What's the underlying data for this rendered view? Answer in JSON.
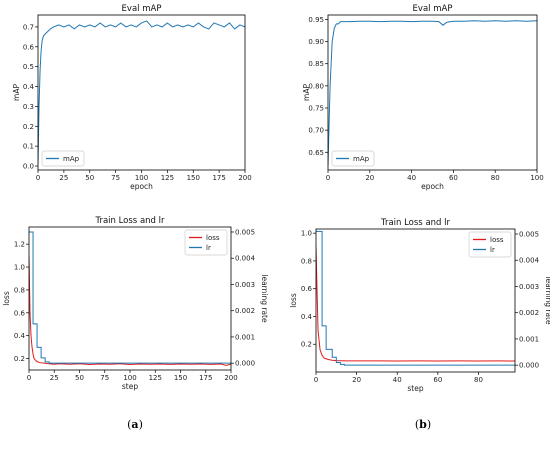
{
  "chart_data": [
    {
      "type": "line",
      "title": "Eval mAP",
      "xlabel": "epoch",
      "ylabel": "mAP",
      "xlim": [
        0,
        200
      ],
      "ylim": [
        -0.02,
        0.76
      ],
      "xticks": [
        0,
        25,
        50,
        75,
        100,
        125,
        150,
        175,
        200
      ],
      "yticks": [
        0.0,
        0.1,
        0.2,
        0.3,
        0.4,
        0.5,
        0.6,
        0.7
      ],
      "yticklabels": [
        "0.0",
        "0.1",
        "0.2",
        "0.3",
        "0.4",
        "0.5",
        "0.6",
        "0.7"
      ],
      "legend": "lower-left",
      "series": [
        {
          "name": "mAp",
          "color": "#1f77b4",
          "x": [
            0,
            1,
            2,
            3,
            4,
            5,
            6,
            8,
            10,
            12,
            15,
            20,
            25,
            30,
            35,
            40,
            45,
            50,
            55,
            60,
            65,
            70,
            75,
            80,
            85,
            90,
            95,
            100,
            105,
            110,
            115,
            120,
            125,
            130,
            135,
            140,
            145,
            150,
            155,
            160,
            165,
            170,
            175,
            180,
            185,
            190,
            195,
            200
          ],
          "y": [
            0.01,
            0.3,
            0.48,
            0.58,
            0.63,
            0.65,
            0.66,
            0.67,
            0.68,
            0.69,
            0.7,
            0.71,
            0.7,
            0.71,
            0.69,
            0.71,
            0.7,
            0.71,
            0.7,
            0.72,
            0.7,
            0.71,
            0.7,
            0.72,
            0.7,
            0.71,
            0.7,
            0.72,
            0.73,
            0.7,
            0.71,
            0.7,
            0.72,
            0.7,
            0.71,
            0.7,
            0.71,
            0.7,
            0.72,
            0.7,
            0.69,
            0.72,
            0.71,
            0.7,
            0.72,
            0.69,
            0.71,
            0.7
          ]
        }
      ]
    },
    {
      "type": "line",
      "title": "Eval mAP",
      "xlabel": "epoch",
      "ylabel": "mAP",
      "xlim": [
        0,
        100
      ],
      "ylim": [
        0.61,
        0.96
      ],
      "xticks": [
        0,
        20,
        40,
        60,
        80,
        100
      ],
      "yticks": [
        0.65,
        0.7,
        0.75,
        0.8,
        0.85,
        0.9,
        0.95
      ],
      "yticklabels": [
        "0.65",
        "0.70",
        "0.75",
        "0.80",
        "0.85",
        "0.90",
        "0.95"
      ],
      "legend": "lower-left",
      "series": [
        {
          "name": "mAp",
          "color": "#1f77b4",
          "x": [
            0,
            1,
            2,
            3,
            4,
            5,
            6,
            8,
            10,
            15,
            20,
            25,
            30,
            35,
            40,
            45,
            50,
            53,
            55,
            57,
            60,
            65,
            70,
            75,
            80,
            85,
            90,
            95,
            100
          ],
          "y": [
            0.62,
            0.8,
            0.9,
            0.93,
            0.94,
            0.94,
            0.945,
            0.945,
            0.945,
            0.946,
            0.946,
            0.945,
            0.946,
            0.946,
            0.945,
            0.946,
            0.946,
            0.945,
            0.937,
            0.944,
            0.946,
            0.946,
            0.947,
            0.946,
            0.947,
            0.946,
            0.947,
            0.946,
            0.947
          ]
        }
      ]
    },
    {
      "type": "line",
      "title": "Train Loss and lr",
      "xlabel": "step",
      "ylabel": "loss",
      "y2label": "learning rate",
      "xlim": [
        0,
        200
      ],
      "ylim": [
        0.1,
        1.35
      ],
      "y2lim": [
        -0.00026,
        0.00519
      ],
      "xticks": [
        0,
        25,
        50,
        75,
        100,
        125,
        150,
        175,
        200
      ],
      "yticks": [
        0.2,
        0.4,
        0.6,
        0.8,
        1.0,
        1.2
      ],
      "yticklabels": [
        "0.2",
        "0.4",
        "0.6",
        "0.8",
        "1.0",
        "1.2"
      ],
      "y2ticks": [
        0.0,
        0.001,
        0.002,
        0.003,
        0.004,
        0.005
      ],
      "y2ticklabels": [
        "0.000",
        "0.001",
        "0.002",
        "0.003",
        "0.004",
        "0.005"
      ],
      "legend": "top-right",
      "series": [
        {
          "name": "loss",
          "color": "#e31a1c",
          "axis": "left",
          "x": [
            0,
            1,
            2,
            3,
            4,
            5,
            7,
            10,
            15,
            20,
            25,
            30,
            40,
            50,
            60,
            70,
            80,
            90,
            100,
            110,
            120,
            130,
            140,
            150,
            160,
            170,
            180,
            190,
            195,
            200
          ],
          "y": [
            1.1,
            0.6,
            0.4,
            0.3,
            0.24,
            0.2,
            0.18,
            0.165,
            0.16,
            0.155,
            0.15,
            0.155,
            0.15,
            0.155,
            0.148,
            0.152,
            0.15,
            0.155,
            0.148,
            0.152,
            0.15,
            0.153,
            0.149,
            0.152,
            0.15,
            0.153,
            0.149,
            0.152,
            0.14,
            0.15
          ]
        },
        {
          "name": "lr",
          "color": "#1f77b4",
          "axis": "right",
          "x": [
            0,
            1,
            1,
            4,
            4,
            8,
            8,
            12,
            12,
            16,
            16,
            20,
            20,
            200
          ],
          "y": [
            0.005,
            0.005,
            0.005,
            0.005,
            0.0015,
            0.0015,
            0.0006,
            0.0006,
            0.0002,
            0.0002,
            5e-05,
            5e-05,
            0.0,
            0.0
          ]
        }
      ]
    },
    {
      "type": "line",
      "title": "Train Loss and lr",
      "xlabel": "step",
      "ylabel": "loss",
      "y2label": "learning rate",
      "xlim": [
        0,
        98
      ],
      "ylim": [
        0.0,
        1.03
      ],
      "y2lim": [
        -0.00026,
        0.00519
      ],
      "xticks": [
        0,
        20,
        40,
        60,
        80
      ],
      "yticks": [
        0.2,
        0.4,
        0.6,
        0.8,
        1.0
      ],
      "yticklabels": [
        "0.2",
        "0.4",
        "0.6",
        "0.8",
        "1.0"
      ],
      "y2ticks": [
        0.0,
        0.001,
        0.002,
        0.003,
        0.004,
        0.005
      ],
      "y2ticklabels": [
        "0.000",
        "0.001",
        "0.002",
        "0.003",
        "0.004",
        "0.005"
      ],
      "legend": "top-right",
      "series": [
        {
          "name": "loss",
          "color": "#e31a1c",
          "axis": "left",
          "x": [
            0,
            1,
            2,
            3,
            4,
            6,
            8,
            10,
            15,
            20,
            30,
            40,
            50,
            60,
            70,
            80,
            90,
            98
          ],
          "y": [
            0.9,
            0.3,
            0.16,
            0.12,
            0.1,
            0.09,
            0.085,
            0.082,
            0.08,
            0.08,
            0.08,
            0.079,
            0.08,
            0.079,
            0.08,
            0.079,
            0.08,
            0.079
          ]
        },
        {
          "name": "lr",
          "color": "#1f77b4",
          "axis": "right",
          "x": [
            0,
            1,
            1,
            3,
            3,
            5,
            5,
            8,
            8,
            10,
            10,
            12,
            12,
            14,
            14,
            98
          ],
          "y": [
            0.0051,
            0.0051,
            0.0051,
            0.0051,
            0.0015,
            0.0015,
            0.0006,
            0.0006,
            0.0003,
            0.0003,
            0.0001,
            0.0001,
            3e-05,
            3e-05,
            0.0,
            0.0
          ]
        }
      ]
    }
  ],
  "captions": [
    "(a)",
    "(b)"
  ]
}
